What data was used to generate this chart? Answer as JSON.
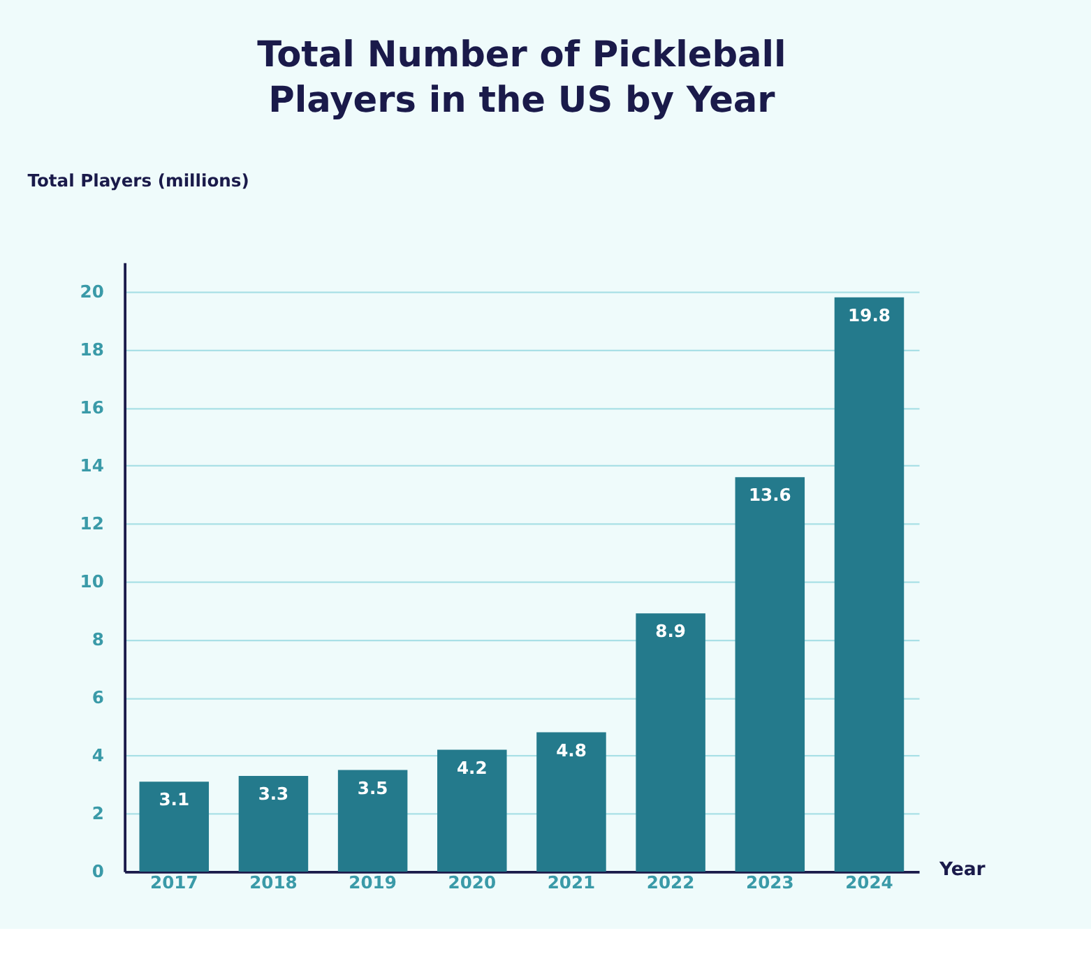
{
  "chart_data": {
    "type": "bar",
    "title": "Total Number of Pickleball Players in the US by Year",
    "xlabel": "Year",
    "ylabel": "Total Players (millions)",
    "categories": [
      "2017",
      "2018",
      "2019",
      "2020",
      "2021",
      "2022",
      "2023",
      "2024"
    ],
    "values": [
      3.1,
      3.3,
      3.5,
      4.2,
      4.8,
      8.9,
      13.6,
      19.8
    ],
    "color": "#247a8c",
    "ylim": [
      0,
      21
    ],
    "yticks": [
      0,
      2,
      4,
      6,
      8,
      10,
      12,
      14,
      16,
      18,
      20
    ],
    "grid": "y",
    "data_labels": true
  }
}
